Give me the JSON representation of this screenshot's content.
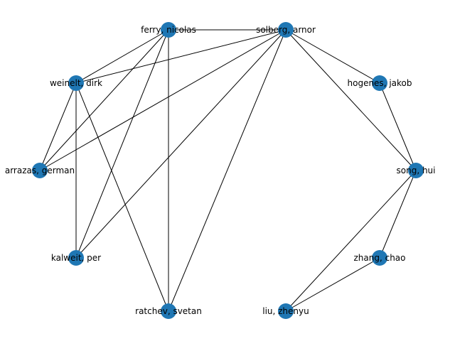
{
  "graph": {
    "node_color": "#1f77b4",
    "edge_color": "#000000",
    "nodes": [
      {
        "id": "ferry",
        "label": "ferry, nicolas"
      },
      {
        "id": "solberg",
        "label": "solberg, arnor"
      },
      {
        "id": "hogenes",
        "label": "hogenes, jakob"
      },
      {
        "id": "song",
        "label": "song, hui"
      },
      {
        "id": "zhang",
        "label": "zhang, chao"
      },
      {
        "id": "liu",
        "label": "liu, zhenyu"
      },
      {
        "id": "ratchev",
        "label": "ratchev, svetan"
      },
      {
        "id": "kalweit",
        "label": "kalweit, per"
      },
      {
        "id": "german",
        "label": "arrazas, german"
      },
      {
        "id": "weinelt",
        "label": "weinelt, dirk"
      }
    ],
    "edges": [
      [
        "ferry",
        "solberg"
      ],
      [
        "ferry",
        "weinelt"
      ],
      [
        "ferry",
        "german"
      ],
      [
        "ferry",
        "kalweit"
      ],
      [
        "ferry",
        "ratchev"
      ],
      [
        "solberg",
        "weinelt"
      ],
      [
        "solberg",
        "german"
      ],
      [
        "solberg",
        "kalweit"
      ],
      [
        "solberg",
        "ratchev"
      ],
      [
        "solberg",
        "hogenes"
      ],
      [
        "solberg",
        "song"
      ],
      [
        "hogenes",
        "song"
      ],
      [
        "song",
        "zhang"
      ],
      [
        "song",
        "liu"
      ],
      [
        "zhang",
        "liu"
      ],
      [
        "weinelt",
        "german"
      ],
      [
        "weinelt",
        "kalweit"
      ],
      [
        "weinelt",
        "ratchev"
      ]
    ]
  }
}
